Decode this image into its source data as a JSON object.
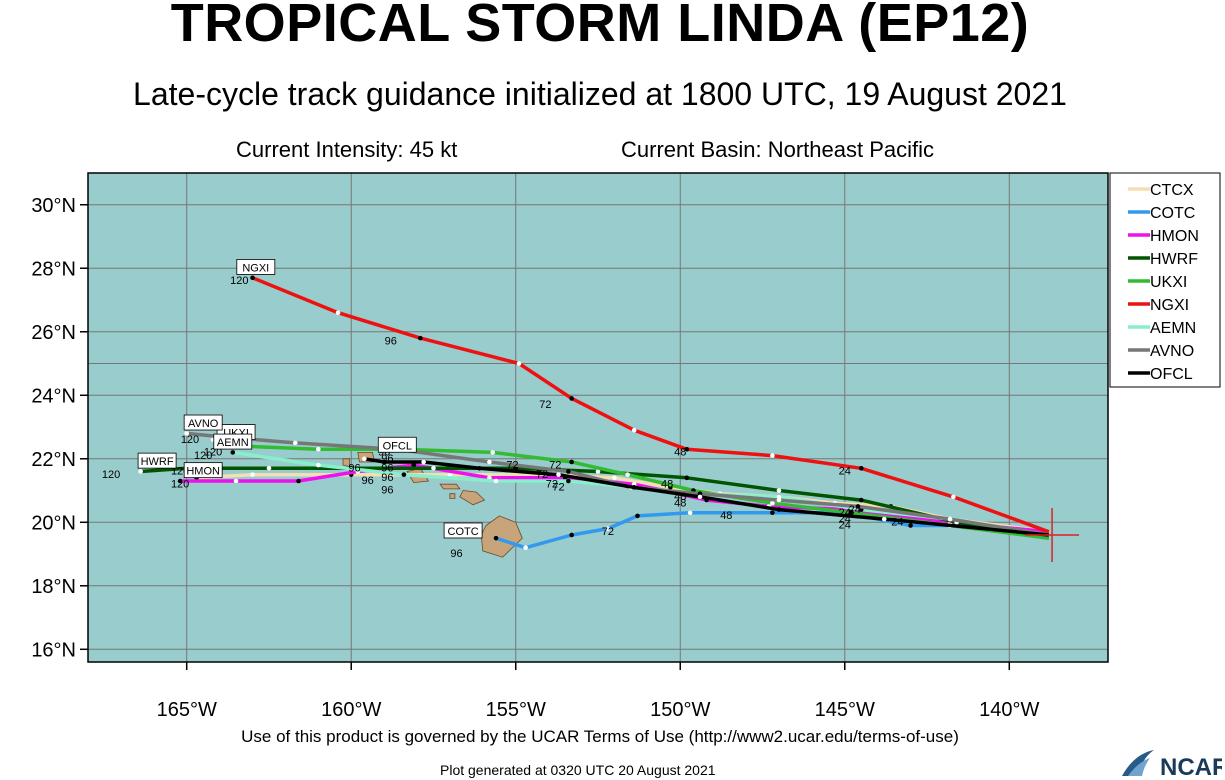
{
  "title": "TROPICAL STORM LINDA (EP12)",
  "subtitle": "Late-cycle track guidance initialized at 1800 UTC, 19 August 2021",
  "current_intensity": "Current Intensity: 45 kt",
  "current_basin": "Current Basin: Northeast Pacific",
  "footer_terms": "Use of this product is governed by the UCAR Terms of Use (http://www2.ucar.edu/terms-of-use)",
  "footer_generated": "Plot generated at 0320 UTC   20 August 2021",
  "logo_text": "NCAR",
  "colors": {
    "ocean": "#99cccc",
    "land": "#c8a47a",
    "grid": "#777777"
  },
  "map": {
    "lon_range": [
      -168,
      -137
    ],
    "lat_range": [
      15.6,
      31
    ],
    "lon_ticks": [
      -165,
      -160,
      -155,
      -150,
      -145,
      -140
    ],
    "lat_ticks": [
      16,
      18,
      20,
      22,
      24,
      26,
      28,
      30
    ],
    "lon_tick_labels": [
      "165°W",
      "160°W",
      "155°W",
      "150°W",
      "145°W",
      "140°W"
    ],
    "lat_tick_labels": [
      "16°N",
      "18°N",
      "20°N",
      "22°N",
      "24°N",
      "26°N",
      "28°N",
      "30°N"
    ],
    "current_position": [
      -138.7,
      19.6
    ]
  },
  "legend": [
    {
      "name": "CTCX",
      "color": "#f5deb3"
    },
    {
      "name": "COTC",
      "color": "#3399ee"
    },
    {
      "name": "HMON",
      "color": "#ee11ee"
    },
    {
      "name": "HWRF",
      "color": "#005500"
    },
    {
      "name": "UKXI",
      "color": "#33bb33"
    },
    {
      "name": "NGXI",
      "color": "#ee1111"
    },
    {
      "name": "AEMN",
      "color": "#88eecc"
    },
    {
      "name": "AVNO",
      "color": "#777777"
    },
    {
      "name": "OFCL",
      "color": "#000000"
    }
  ],
  "tracks": [
    {
      "name": "CTCX",
      "color": "#f5deb3",
      "label": "",
      "points": [
        [
          -138.8,
          19.7
        ],
        [
          -141.8,
          20.1
        ],
        [
          -143.6,
          20.5
        ],
        [
          -145.3,
          20.6
        ],
        [
          -147.0,
          20.8
        ],
        [
          -148.8,
          20.9
        ],
        [
          -150.3,
          21.1
        ],
        [
          -152.0,
          21.4
        ],
        [
          -154.0,
          21.5
        ],
        [
          -157.0,
          21.5
        ],
        [
          -160.0,
          21.5
        ],
        [
          -163.0,
          21.5
        ],
        [
          -164.7,
          21.4
        ]
      ]
    },
    {
      "name": "COTC",
      "color": "#3399ee",
      "label": "COTC",
      "label_pos": [
        -156.6,
        19.6
      ],
      "points": [
        [
          -138.8,
          19.6
        ],
        [
          -141.8,
          19.9
        ],
        [
          -143.0,
          19.9
        ],
        [
          -145.0,
          20.3
        ],
        [
          -147.2,
          20.3
        ],
        [
          -149.7,
          20.3
        ],
        [
          -151.3,
          20.2
        ],
        [
          -152.2,
          19.8
        ],
        [
          -153.3,
          19.6
        ],
        [
          -154.7,
          19.2
        ],
        [
          -155.6,
          19.5
        ]
      ]
    },
    {
      "name": "HMON",
      "color": "#ee11ee",
      "label": "HMON",
      "label_pos": [
        -164.5,
        21.5
      ],
      "points": [
        [
          -138.8,
          19.7
        ],
        [
          -141.8,
          20.0
        ],
        [
          -144.8,
          20.4
        ],
        [
          -147.3,
          20.5
        ],
        [
          -149.2,
          20.7
        ],
        [
          -151.4,
          21.2
        ],
        [
          -153.5,
          21.4
        ],
        [
          -155.8,
          21.4
        ],
        [
          -158.1,
          21.8
        ],
        [
          -159.8,
          21.6
        ],
        [
          -161.6,
          21.3
        ],
        [
          -163.5,
          21.3
        ],
        [
          -165.2,
          21.3
        ]
      ]
    },
    {
      "name": "HWRF",
      "color": "#005500",
      "label": "HWRF",
      "label_pos": [
        -165.9,
        21.8
      ],
      "points": [
        [
          -138.8,
          19.5
        ],
        [
          -141.6,
          20.0
        ],
        [
          -144.5,
          20.7
        ],
        [
          -147.0,
          21.0
        ],
        [
          -149.8,
          21.4
        ],
        [
          -152.5,
          21.6
        ],
        [
          -155.0,
          21.7
        ],
        [
          -157.5,
          21.7
        ],
        [
          -160.0,
          21.7
        ],
        [
          -162.5,
          21.7
        ],
        [
          -165.0,
          21.7
        ],
        [
          -166.4,
          21.6
        ]
      ]
    },
    {
      "name": "UKXI",
      "color": "#33bb33",
      "label": "UKXI",
      "label_pos": [
        -163.5,
        22.7
      ],
      "points": [
        [
          -138.8,
          19.5
        ],
        [
          -141.8,
          19.9
        ],
        [
          -144.8,
          20.3
        ],
        [
          -147.2,
          20.6
        ],
        [
          -149.6,
          21.0
        ],
        [
          -151.6,
          21.5
        ],
        [
          -153.3,
          21.9
        ],
        [
          -155.7,
          22.2
        ],
        [
          -158.5,
          22.3
        ],
        [
          -161.0,
          22.3
        ],
        [
          -163.3,
          22.4
        ],
        [
          -164.2,
          22.6
        ]
      ]
    },
    {
      "name": "NGXI",
      "color": "#ee1111",
      "label": "NGXI",
      "label_pos": [
        -162.9,
        27.9
      ],
      "points": [
        [
          -138.8,
          19.7
        ],
        [
          -141.7,
          20.8
        ],
        [
          -144.5,
          21.7
        ],
        [
          -147.2,
          22.1
        ],
        [
          -149.8,
          22.3
        ],
        [
          -151.4,
          22.9
        ],
        [
          -153.3,
          23.9
        ],
        [
          -154.9,
          25.0
        ],
        [
          -157.9,
          25.8
        ],
        [
          -160.4,
          26.6
        ],
        [
          -163.0,
          27.7
        ]
      ]
    },
    {
      "name": "AEMN",
      "color": "#88eecc",
      "label": "AEMN",
      "label_pos": [
        -163.6,
        22.4
      ],
      "points": [
        [
          -138.8,
          19.6
        ],
        [
          -141.8,
          20.1
        ],
        [
          -144.5,
          20.4
        ],
        [
          -147.0,
          20.8
        ],
        [
          -149.6,
          20.9
        ],
        [
          -151.4,
          21.1
        ],
        [
          -153.4,
          21.3
        ],
        [
          -155.6,
          21.3
        ],
        [
          -158.4,
          21.5
        ],
        [
          -161.0,
          21.8
        ],
        [
          -163.6,
          22.2
        ]
      ]
    },
    {
      "name": "AVNO",
      "color": "#777777",
      "label": "AVNO",
      "label_pos": [
        -164.5,
        23.0
      ],
      "points": [
        [
          -138.8,
          19.6
        ],
        [
          -141.8,
          20.1
        ],
        [
          -144.6,
          20.5
        ],
        [
          -147.0,
          20.7
        ],
        [
          -149.4,
          20.9
        ],
        [
          -151.5,
          21.1
        ],
        [
          -153.4,
          21.6
        ],
        [
          -155.8,
          21.9
        ],
        [
          -158.6,
          22.3
        ],
        [
          -161.7,
          22.5
        ],
        [
          -164.0,
          22.7
        ],
        [
          -165.0,
          22.8
        ]
      ]
    },
    {
      "name": "OFCL",
      "color": "#000000",
      "label": "OFCL",
      "label_pos": [
        -158.6,
        22.3
      ],
      "points": [
        [
          -138.8,
          19.6
        ],
        [
          -143.8,
          20.1
        ],
        [
          -147.0,
          20.4
        ],
        [
          -149.4,
          20.8
        ],
        [
          -151.4,
          21.1
        ],
        [
          -153.7,
          21.5
        ],
        [
          -156.1,
          21.7
        ],
        [
          -157.8,
          21.9
        ],
        [
          -159.0,
          21.9
        ],
        [
          -159.6,
          22.0
        ]
      ]
    }
  ],
  "hour_labels": [
    {
      "text": "120",
      "at": [
        -163.4,
        27.5
      ]
    },
    {
      "text": "96",
      "at": [
        -158.8,
        25.6
      ]
    },
    {
      "text": "72",
      "at": [
        -154.1,
        23.6
      ]
    },
    {
      "text": "48",
      "at": [
        -150.0,
        22.1
      ]
    },
    {
      "text": "24",
      "at": [
        -145.0,
        21.5
      ]
    },
    {
      "text": "72",
      "at": [
        -152.2,
        19.6
      ]
    },
    {
      "text": "96",
      "at": [
        -156.8,
        18.9
      ]
    },
    {
      "text": "48",
      "at": [
        -148.6,
        20.1
      ]
    },
    {
      "text": "24",
      "at": [
        -144.7,
        20.3
      ]
    },
    {
      "text": "24",
      "at": [
        -143.4,
        19.9
      ]
    },
    {
      "text": "48",
      "at": [
        -150.4,
        21.1
      ]
    },
    {
      "text": "48",
      "at": [
        -150.0,
        20.7
      ]
    },
    {
      "text": "48",
      "at": [
        -150.0,
        20.5
      ]
    },
    {
      "text": "72",
      "at": [
        -153.8,
        21.7
      ]
    },
    {
      "text": "72",
      "at": [
        -154.2,
        21.4
      ]
    },
    {
      "text": "72",
      "at": [
        -153.7,
        21.0
      ]
    },
    {
      "text": "72",
      "at": [
        -155.1,
        21.7
      ]
    },
    {
      "text": "72",
      "at": [
        -153.9,
        21.1
      ]
    },
    {
      "text": "96",
      "at": [
        -158.9,
        21.3
      ]
    },
    {
      "text": "96",
      "at": [
        -159.5,
        21.2
      ]
    },
    {
      "text": "96",
      "at": [
        -159.9,
        21.6
      ]
    },
    {
      "text": "96",
      "at": [
        -158.9,
        21.6
      ]
    },
    {
      "text": "96",
      "at": [
        -158.9,
        21.9
      ]
    },
    {
      "text": "96",
      "at": [
        -159.0,
        22.1
      ]
    },
    {
      "text": "96",
      "at": [
        -158.9,
        20.9
      ]
    },
    {
      "text": "24",
      "at": [
        -145.0,
        20.0
      ]
    },
    {
      "text": "24",
      "at": [
        -145.0,
        19.8
      ]
    },
    {
      "text": "24",
      "at": [
        -145.0,
        20.2
      ]
    },
    {
      "text": "120",
      "at": [
        -165.2,
        21.5
      ]
    },
    {
      "text": "120",
      "at": [
        -164.5,
        22.0
      ]
    },
    {
      "text": "120",
      "at": [
        -164.9,
        22.5
      ]
    },
    {
      "text": "120",
      "at": [
        -164.2,
        22.1
      ]
    },
    {
      "text": "120",
      "at": [
        -167.3,
        21.4
      ]
    },
    {
      "text": "120",
      "at": [
        -165.2,
        21.1
      ]
    }
  ]
}
